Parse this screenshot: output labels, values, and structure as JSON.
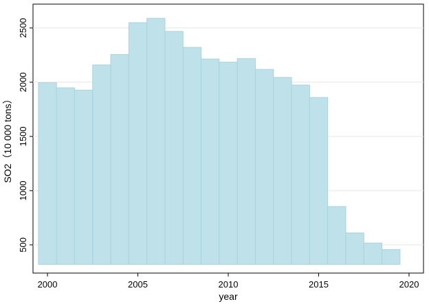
{
  "chart_data": {
    "type": "bar",
    "xlabel": "year",
    "ylabel": "SO2（10 000 tons）",
    "x": [
      2000,
      2001,
      2002,
      2003,
      2004,
      2005,
      2006,
      2007,
      2008,
      2009,
      2010,
      2011,
      2012,
      2013,
      2014,
      2015,
      2016,
      2017,
      2018,
      2019
    ],
    "values": [
      1995,
      1948,
      1927,
      2159,
      2255,
      2549,
      2589,
      2468,
      2321,
      2214,
      2185,
      2218,
      2118,
      2044,
      1974,
      1859,
      854,
      610,
      517,
      457
    ],
    "xticks": [
      "2000",
      "2005",
      "2010",
      "2015",
      "2020"
    ],
    "yticks": [
      "500",
      "1000",
      "1500",
      "2000",
      "2500"
    ],
    "xlim": [
      1999.2,
      2020.8
    ],
    "ylim": [
      240,
      2720
    ],
    "bar_base": 320,
    "grid": true,
    "colors": {
      "bar_fill": "#bfe1ea",
      "bar_edge": "#a9d3de",
      "grid": "#e6e6e6",
      "axis": "#000000"
    }
  }
}
